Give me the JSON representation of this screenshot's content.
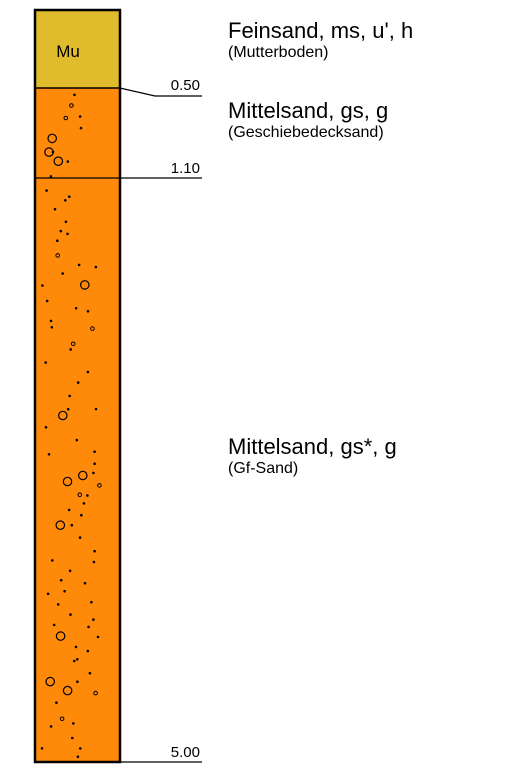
{
  "colors": {
    "topsoil": "#e0bb2c",
    "sand": "#ff8a0a",
    "outline": "#000000"
  },
  "column": {
    "top_abbreviation": "Mu"
  },
  "layers": [
    {
      "name": "Feinsand, ms, u', h",
      "note": "(Mutterboden)",
      "depth": "0.50"
    },
    {
      "name": "Mittelsand, gs, g",
      "note": "(Geschiebedecksand)",
      "depth": "1.10"
    },
    {
      "name": "Mittelsand, gs*, g",
      "note": "(Gf-Sand)",
      "depth": "5.00"
    }
  ]
}
